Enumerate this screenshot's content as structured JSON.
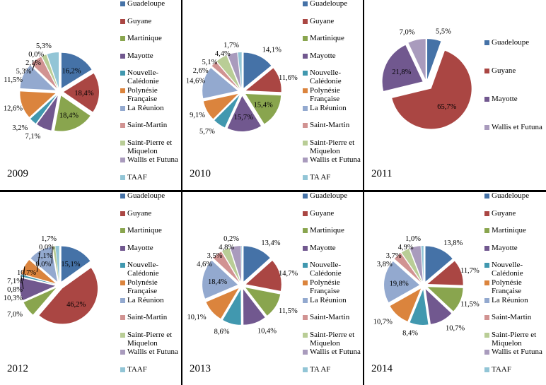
{
  "chart_data": [
    {
      "type": "pie",
      "title": "2009",
      "categories": [
        "Guadeloupe",
        "Guyane",
        "Martinique",
        "Mayotte",
        "Nouvelle-Calédonie",
        "Polynésie Française",
        "La Réunion",
        "Saint-Martin",
        "Saint-Pierre et Miquelon",
        "Wallis et Futuna",
        "TAAF"
      ],
      "values": [
        16.2,
        18.4,
        18.4,
        7.1,
        3.2,
        12.6,
        11.5,
        5.3,
        2.1,
        0.0,
        5.3
      ],
      "labels": [
        "16,2%",
        "18,4%",
        "18,4%",
        "7,1%",
        "3,2%",
        "12,6%",
        "11,5%",
        "5,3%",
        "2,1%",
        "0,0%",
        "5,3%"
      ],
      "legend": "right"
    },
    {
      "type": "pie",
      "title": "2010",
      "categories": [
        "Guadeloupe",
        "Guyane",
        "Martinique",
        "Mayotte",
        "Nouvelle-Calédonie",
        "Polynésie Française",
        "La Réunion",
        "Saint-Martin",
        "Saint-Pierre et Miquelon",
        "Wallis et Futuna",
        "TA AF"
      ],
      "values": [
        14.1,
        11.6,
        15.4,
        15.7,
        5.7,
        9.1,
        14.6,
        2.6,
        5.1,
        4.4,
        1.7
      ],
      "labels": [
        "14,1%",
        "11,6%",
        "15,4%",
        "15,7%",
        "5,7%",
        "9,1%",
        "14,6%",
        "2,6%",
        "5,1%",
        "4,4%",
        "1,7%"
      ],
      "legend": "right"
    },
    {
      "type": "pie",
      "title": "2011",
      "categories": [
        "Guadeloupe",
        "Guyane",
        "Mayotte",
        "Wallis et Futuna"
      ],
      "values": [
        5.5,
        65.7,
        21.8,
        7.0
      ],
      "labels": [
        "5,5%",
        "65,7%",
        "21,8%",
        "7,0%"
      ],
      "legend": "right"
    },
    {
      "type": "pie",
      "title": "2012",
      "categories": [
        "Guadeloupe",
        "Guyane",
        "Martinique",
        "Mayotte",
        "Nouvelle-Calédonie",
        "Polynésie Française",
        "La Réunion",
        "Saint-Martin",
        "Saint-Pierre et Miquelon",
        "Wallis et Futuna",
        "TAAF"
      ],
      "values": [
        15.1,
        46.2,
        7.0,
        10.3,
        0.8,
        7.1,
        10.7,
        0.0,
        1.1,
        0.0,
        1.7
      ],
      "labels": [
        "15,1%",
        "46,2%",
        "7,0%",
        "10,3%",
        "0,8%",
        "7,1%",
        "10,7%",
        "0,0%",
        "1,1%",
        "0,0%",
        "1,7%"
      ],
      "legend": "right"
    },
    {
      "type": "pie",
      "title": "2013",
      "categories": [
        "Guadeloupe",
        "Guyane",
        "Martinique",
        "Mayotte",
        "Nouvelle-Calédonie",
        "Polynésie Française",
        "La Réunion",
        "Saint-Martin",
        "Saint-Pierre et Miquelon",
        "Wallis et Futuna",
        "TA AF"
      ],
      "values": [
        13.4,
        14.7,
        11.5,
        10.4,
        8.6,
        10.1,
        18.4,
        4.6,
        3.5,
        4.8,
        0.2
      ],
      "labels": [
        "13,4%",
        "14,7%",
        "11,5%",
        "10,4%",
        "8,6%",
        "10,1%",
        "18,4%",
        "4,6%",
        "3,5%",
        "4,8%",
        "0,2%"
      ],
      "legend": "right"
    },
    {
      "type": "pie",
      "title": "2014",
      "categories": [
        "Guadeloupe",
        "Guyane",
        "Martinique",
        "Mayotte",
        "Nouvelle-Calédonie",
        "Polynésie Française",
        "La Réunion",
        "Saint-Martin",
        "Saint-Pierre et Miquelon",
        "Wallis et Futuna",
        "TAAF"
      ],
      "values": [
        13.8,
        11.7,
        11.5,
        10.7,
        8.4,
        10.7,
        19.8,
        3.8,
        3.7,
        4.9,
        1.0
      ],
      "labels": [
        "13,8%",
        "11,7%",
        "11,5%",
        "10,7%",
        "8,4%",
        "10,7%",
        "19,8%",
        "3,8%",
        "3,7%",
        "4,9%",
        "1,0%"
      ],
      "legend": "right"
    }
  ],
  "colors": {
    "Guadeloupe": "#4572A7",
    "Guyane": "#AA4643",
    "Martinique": "#89A54E",
    "Mayotte": "#71588F",
    "Nouvelle-Calédonie": "#4198AF",
    "Polynésie Française": "#DB843D",
    "La Réunion": "#93A9CF",
    "Saint-Martin": "#D19392",
    "Saint-Pierre et Miquelon": "#B9CD96",
    "Wallis et Futuna": "#A99BBD",
    "TAAF": "#92C5D6",
    "TA AF": "#92C5D6"
  }
}
